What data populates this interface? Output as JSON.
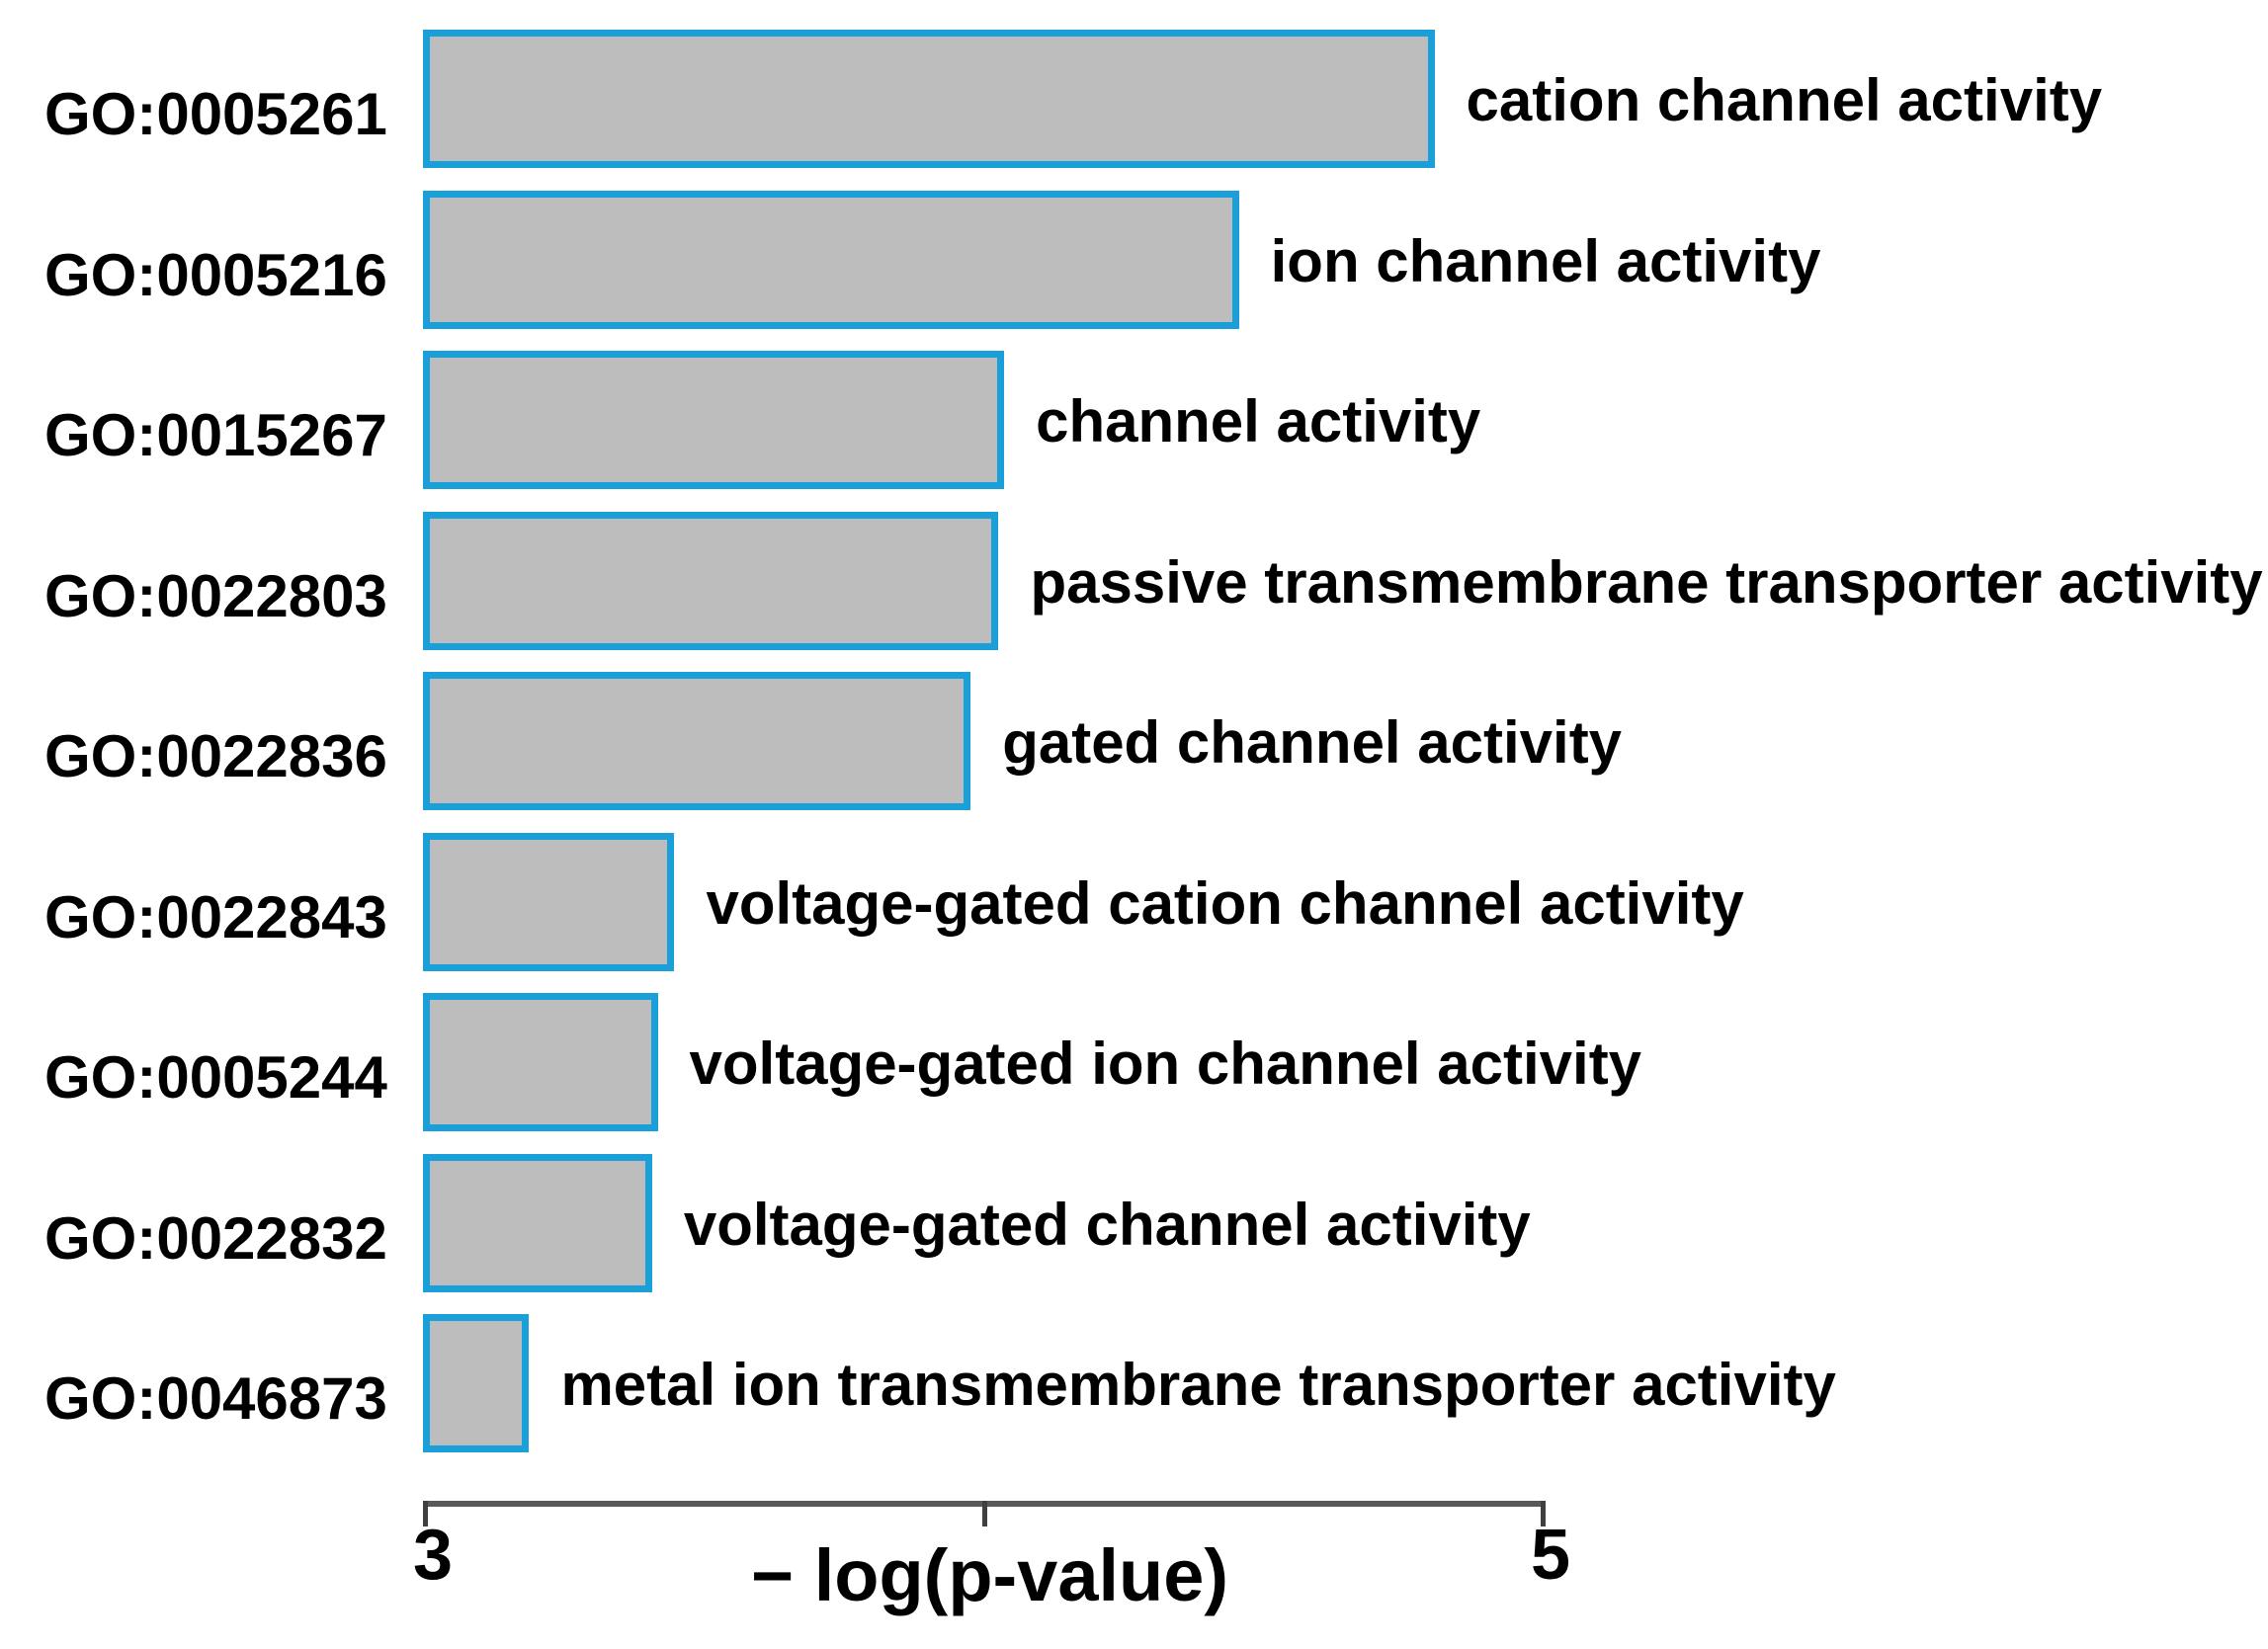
{
  "chart_data": {
    "type": "bar",
    "orientation": "horizontal",
    "title": "",
    "xlabel": "− log(p-value)",
    "ylabel": "",
    "xlim": [
      3,
      5
    ],
    "x_ticks": [
      {
        "value": 3,
        "label": "3"
      },
      {
        "value": 4,
        "label": ""
      },
      {
        "value": 5,
        "label": "5"
      }
    ],
    "grid": false,
    "legend": "none",
    "categories": [
      "GO:0005261",
      "GO:0005216",
      "GO:0015267",
      "GO:0022803",
      "GO:0022836",
      "GO:0022843",
      "GO:0005244",
      "GO:0022832",
      "GO:0046873"
    ],
    "items": [
      {
        "go_id": "GO:0005261",
        "label": "cation channel activity",
        "value": 4.81
      },
      {
        "go_id": "GO:0005216",
        "label": "ion channel activity",
        "value": 4.46
      },
      {
        "go_id": "GO:0015267",
        "label": "channel activity",
        "value": 4.04
      },
      {
        "go_id": "GO:0022803",
        "label": "passive transmembrane transporter activity",
        "value": 4.03
      },
      {
        "go_id": "GO:0022836",
        "label": "gated channel activity",
        "value": 3.98
      },
      {
        "go_id": "GO:0022843",
        "label": "voltage-gated cation channel activity",
        "value": 3.45
      },
      {
        "go_id": "GO:0005244",
        "label": "voltage-gated ion channel activity",
        "value": 3.42
      },
      {
        "go_id": "GO:0022832",
        "label": "voltage-gated channel activity",
        "value": 3.41
      },
      {
        "go_id": "GO:0046873",
        "label": "metal ion transmembrane transporter activity",
        "value": 3.19
      }
    ],
    "colors": {
      "bar_fill": "#bdbdbd",
      "bar_border": "#1b9fd9",
      "axis_line": "#595959",
      "tick": "#3f3f3f",
      "text": "#000000",
      "background": "#ffffff"
    }
  }
}
